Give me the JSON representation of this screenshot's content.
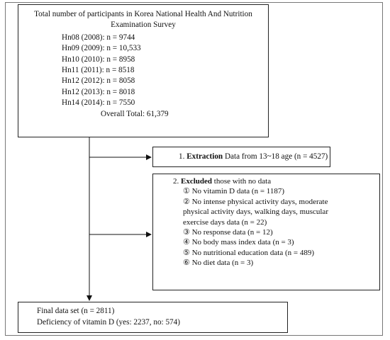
{
  "box_participants": {
    "title": "Total number of participants in Korea National Health And Nutrition Examination Survey",
    "lines": [
      "Hn08 (2008): n = 9744",
      "Hn09 (2009): n = 10,533",
      "Hn10 (2010): n = 8958",
      "Hn11 (2011): n = 8518",
      "Hn12 (2012): n = 8058",
      "Hn12 (2013): n = 8018",
      "Hn14 (2014): n = 7550"
    ],
    "total": "Overall Total: 61,379"
  },
  "box_extraction": {
    "num": "1. ",
    "bold": "Extraction",
    "rest": " Data from 13~18 age (n = 4527)"
  },
  "box_excluded": {
    "num": "2. ",
    "bold": "Excluded",
    "rest": " those with no data",
    "items": [
      "① No vitamin D data (n = 1187)",
      "② No intense physical activity days, moderate",
      "physical activity days, walking days, muscular",
      "exercise days data (n = 22)",
      "③ No response data (n = 12)",
      "④ No body mass index data (n = 3)",
      "⑤ No nutritional education data (n = 489)",
      "⑥ No diet data (n = 3)"
    ]
  },
  "box_final": {
    "line1": "Final data set (n = 2811)",
    "line2": "Deficiency of vitamin D (yes: 2237, no: 574)"
  }
}
